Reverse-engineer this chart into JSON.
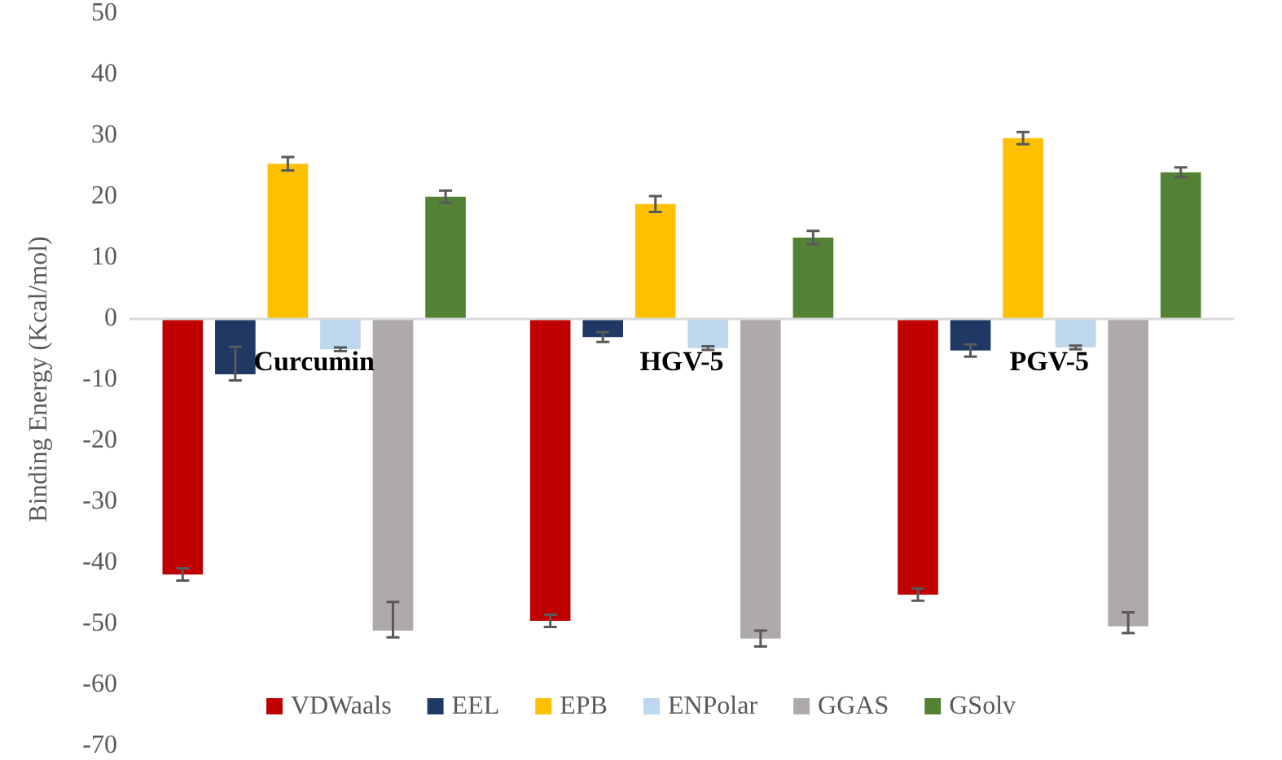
{
  "chart_data": {
    "type": "bar",
    "ylabel": "Binding Energy (Kcal/mol)",
    "categories": [
      "Curcumin",
      "HGV-5",
      "PGV-5"
    ],
    "series": [
      {
        "name": "VDWaals",
        "color": "#c00000",
        "values": [
          -42.0,
          -49.6,
          -45.3
        ],
        "errors": [
          1.0,
          1.0,
          1.0
        ]
      },
      {
        "name": "EEL",
        "color": "#203864",
        "values": [
          -9.2,
          -3.1,
          -5.3
        ],
        "errors": [
          [
            -10.2,
            -4.7
          ],
          0.8,
          1.0
        ]
      },
      {
        "name": "EPB",
        "color": "#ffc000",
        "values": [
          25.3,
          18.7,
          29.5
        ],
        "errors": [
          1.1,
          1.3,
          1.0
        ]
      },
      {
        "name": "ENPolar",
        "color": "#bdd7ee",
        "values": [
          -5.1,
          -4.9,
          -4.8
        ],
        "errors": [
          0.3,
          0.3,
          0.3
        ]
      },
      {
        "name": "GGAS",
        "color": "#aeaaaa",
        "values": [
          -51.2,
          -52.5,
          -50.5
        ],
        "errors": [
          [
            -52.3,
            -46.5
          ],
          1.3,
          [
            -51.6,
            -48.2
          ]
        ]
      },
      {
        "name": "GSolv",
        "color": "#548235",
        "values": [
          19.9,
          13.2,
          23.9
        ],
        "errors": [
          1.0,
          1.1,
          0.8
        ]
      }
    ],
    "ylim": [
      -70,
      50
    ],
    "yticks": [
      -70,
      -60,
      -50,
      -40,
      -30,
      -20,
      -10,
      0,
      10,
      20,
      30,
      40,
      50
    ],
    "legend": "bottom"
  }
}
